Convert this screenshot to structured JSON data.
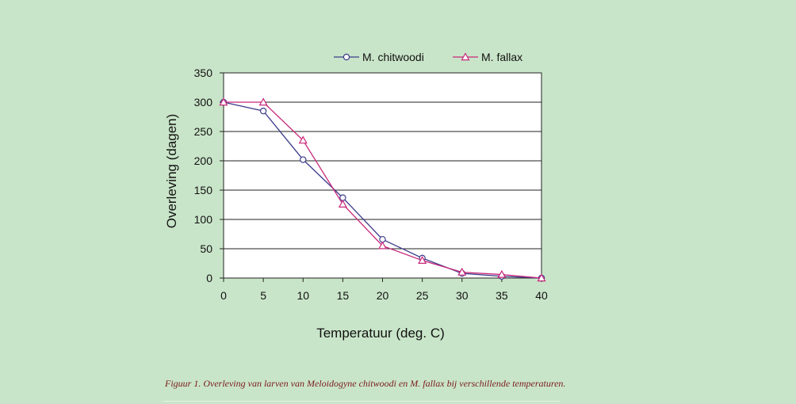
{
  "chart_data": {
    "type": "line",
    "title": "",
    "xlabel": "Temperatuur (deg. C)",
    "ylabel": "Overleving (dagen)",
    "x": [
      0,
      5,
      10,
      15,
      20,
      25,
      30,
      35,
      40
    ],
    "xlim": [
      0,
      40
    ],
    "ylim": [
      0,
      350
    ],
    "xticks": [
      "0",
      "5",
      "10",
      "15",
      "20",
      "25",
      "30",
      "35",
      "40"
    ],
    "yticks": [
      "0",
      "50",
      "100",
      "150",
      "200",
      "250",
      "300",
      "350"
    ],
    "grid": "horizontal",
    "legend_position": "top",
    "series": [
      {
        "name": "M. chitwoodi",
        "marker": "circle",
        "color": "#3c3c8c",
        "values": [
          300,
          285,
          202,
          137,
          66,
          34,
          8,
          3,
          0
        ]
      },
      {
        "name": "M. fallax",
        "marker": "triangle",
        "color": "#c8287a",
        "values": [
          300,
          300,
          235,
          126,
          55,
          30,
          10,
          6,
          0
        ]
      }
    ]
  },
  "caption": "Figuur 1. Overleving van larven van Meloidogyne chitwoodi en M. fallax bij verschillende temperaturen."
}
